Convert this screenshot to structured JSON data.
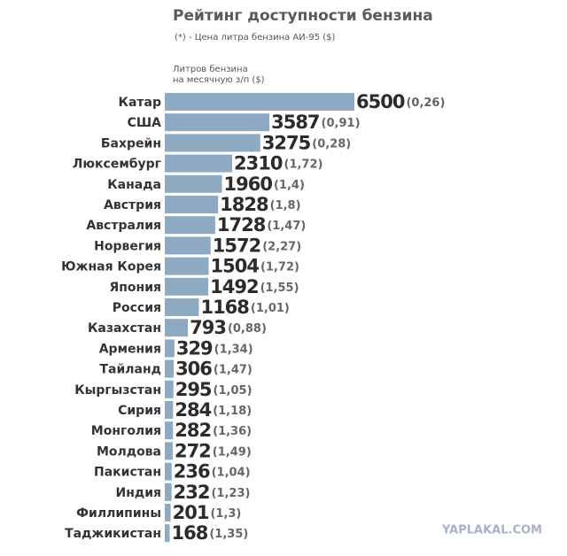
{
  "chart_data": {
    "type": "bar",
    "orientation": "horizontal",
    "title": "Рейтинг доступности бензина",
    "subtitle": "(*) - Цена литра бензина АИ-95 ($)",
    "x_label": [
      "Литров бензина",
      "на месячную з/п ($)"
    ],
    "categories": [
      "Катар",
      "США",
      "Бахрейн",
      "Люксембург",
      "Канада",
      "Австрия",
      "Австралия",
      "Норвегия",
      "Южная Корея",
      "Япония",
      "Россия",
      "Казахстан",
      "Армения",
      "Тайланд",
      "Кыргызстан",
      "Сирия",
      "Монголия",
      "Молдова",
      "Пакистан",
      "Индия",
      "Филлипины",
      "Таджикистан"
    ],
    "values": [
      6500,
      3587,
      3275,
      2310,
      1960,
      1828,
      1728,
      1572,
      1504,
      1492,
      1168,
      793,
      329,
      306,
      295,
      284,
      282,
      272,
      236,
      232,
      201,
      168
    ],
    "price_labels": [
      "(0,26)",
      "(0,91)",
      "(0,28)",
      "(1,72)",
      "(1,4)",
      "(1,8)",
      "(1,47)",
      "(2,27)",
      "(1,72)",
      "(1,55)",
      "(1,01)",
      "(0,88)",
      "(1,34)",
      "(1,47)",
      "(1,05)",
      "(1,18)",
      "(1,36)",
      "(1,49)",
      "(1,04)",
      "(1,23)",
      "(1,3)",
      "(1,35)"
    ],
    "color": "#8eaac2",
    "xlim": [
      0,
      6500
    ],
    "watermark": "YAPLAKAL.COM"
  }
}
